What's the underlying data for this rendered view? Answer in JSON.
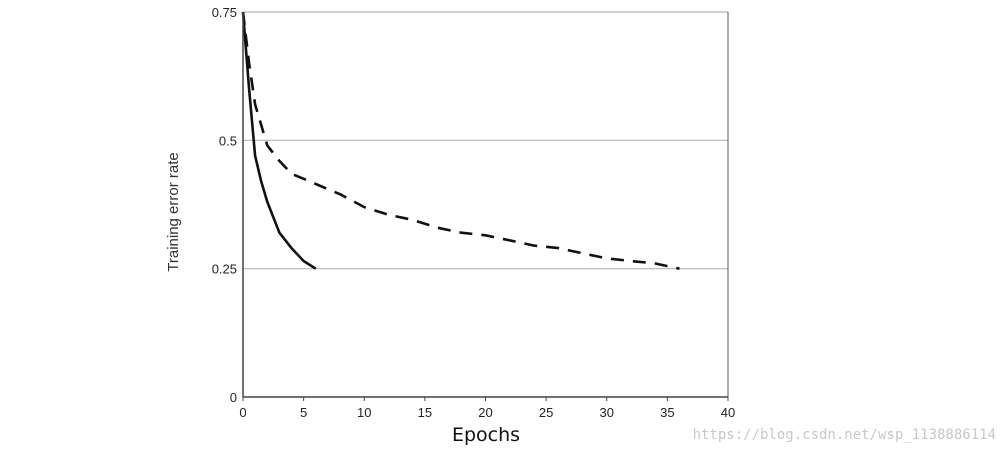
{
  "chart_data": {
    "type": "line",
    "title": "",
    "xlabel": "Epochs",
    "ylabel": "Training error rate",
    "xlim": [
      0,
      40
    ],
    "ylim": [
      0,
      0.75
    ],
    "x_ticks": [
      "0",
      "5",
      "10",
      "15",
      "20",
      "25",
      "30",
      "35",
      "40"
    ],
    "y_ticks": [
      "0",
      "0.25",
      "0.5",
      "0.75"
    ],
    "grid": "horizontal at 0.25, 0.5, 0.75",
    "series": [
      {
        "style": "solid",
        "color": "#111111",
        "x": [
          0,
          0.5,
          1,
          1.5,
          2,
          3,
          4,
          5,
          6
        ],
        "y": [
          0.75,
          0.6,
          0.47,
          0.42,
          0.38,
          0.32,
          0.29,
          0.265,
          0.25
        ]
      },
      {
        "style": "dashed",
        "color": "#111111",
        "x": [
          0,
          0.5,
          1,
          1.5,
          2,
          3,
          4,
          6,
          8,
          10,
          12,
          14,
          16,
          18,
          20,
          22,
          24,
          26,
          28,
          30,
          32,
          34,
          36
        ],
        "y": [
          0.75,
          0.65,
          0.57,
          0.53,
          0.49,
          0.46,
          0.435,
          0.415,
          0.395,
          0.37,
          0.355,
          0.345,
          0.33,
          0.32,
          0.315,
          0.305,
          0.295,
          0.29,
          0.28,
          0.27,
          0.265,
          0.26,
          0.25
        ]
      }
    ]
  },
  "watermark": "https://blog.csdn.net/wsp_1138886114"
}
